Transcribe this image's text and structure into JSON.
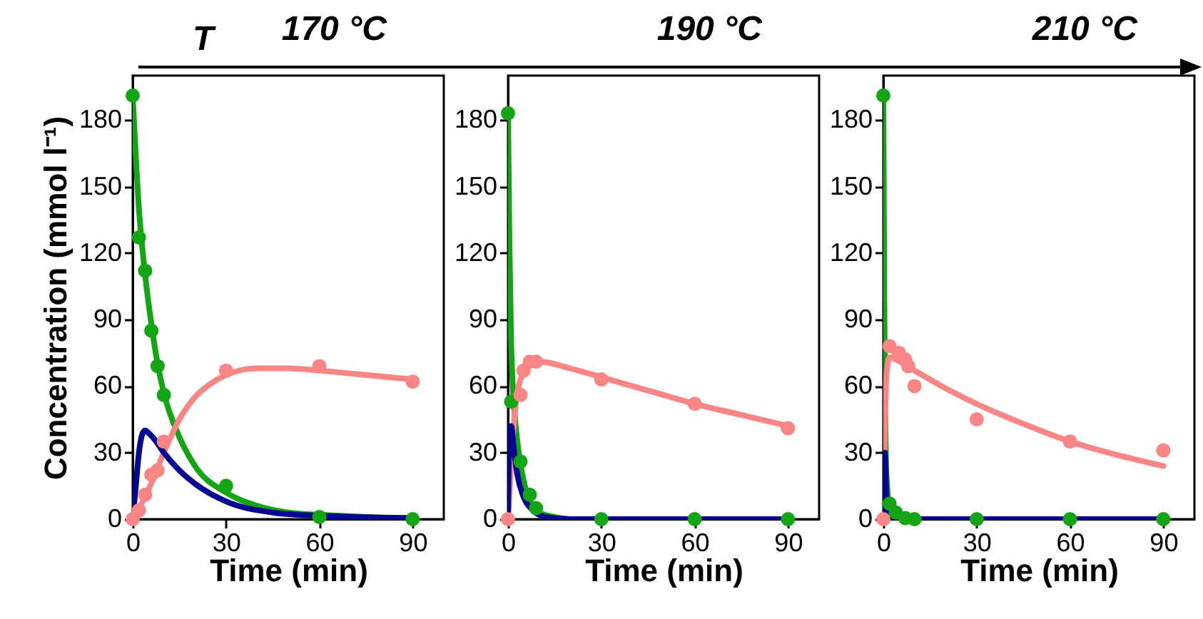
{
  "chart_data": [
    {
      "type": "line",
      "title": "170 °C",
      "annotations": [
        "T"
      ],
      "xlabel": "Time (min)",
      "ylabel": "Concentration (mmol l⁻¹)",
      "xlim": [
        0,
        100
      ],
      "ylim": [
        0,
        200
      ],
      "xticks": [
        0,
        30,
        60,
        90
      ],
      "yticks": [
        0,
        30,
        60,
        90,
        120,
        150,
        180
      ],
      "series": [
        {
          "color": "#14a514",
          "marker": "none",
          "x": [
            0,
            2,
            4,
            6,
            8,
            10,
            15,
            20,
            30,
            40,
            50,
            60,
            75,
            90
          ],
          "values": [
            191,
            140,
            110,
            88,
            70,
            57,
            37,
            24,
            12,
            6,
            3,
            2,
            1,
            0.5
          ]
        },
        {
          "color": "#fa8585",
          "marker": "none",
          "x": [
            0,
            5,
            10,
            15,
            20,
            25,
            30,
            40,
            50,
            60,
            75,
            90
          ],
          "values": [
            0,
            13,
            30,
            45,
            55,
            61,
            65,
            68,
            68,
            67,
            65,
            63
          ]
        },
        {
          "color": "#050594",
          "marker": "none",
          "x": [
            0,
            1,
            2,
            3,
            4,
            5,
            7,
            10,
            15,
            20,
            30,
            45,
            60,
            90
          ],
          "values": [
            0,
            15,
            30,
            38,
            40,
            39,
            36,
            30,
            22,
            16,
            8,
            3,
            1.5,
            0.5
          ]
        },
        {
          "type": "scatter",
          "marker": "circle",
          "color": "#14a514",
          "x": [
            0,
            2,
            4,
            6,
            8,
            10,
            30,
            60,
            90
          ],
          "values": [
            191,
            127,
            112,
            85,
            69,
            56,
            15,
            1,
            0
          ]
        },
        {
          "type": "scatter",
          "marker": "circle",
          "color": "#fa8585",
          "x": [
            0,
            2,
            4,
            6,
            8,
            10,
            30,
            60,
            90
          ],
          "values": [
            0,
            4,
            11,
            20,
            22,
            35,
            67,
            69,
            62
          ]
        }
      ]
    },
    {
      "type": "line",
      "title": "190 °C",
      "xlabel": "Time (min)",
      "xlim": [
        0,
        100
      ],
      "ylim": [
        0,
        200
      ],
      "xticks": [
        0,
        30,
        60,
        90
      ],
      "yticks": [
        0,
        30,
        60,
        90,
        120,
        150,
        180
      ],
      "series": [
        {
          "color": "#14a514",
          "marker": "none",
          "x": [
            0,
            0.5,
            1,
            2,
            3,
            4,
            6,
            8,
            10,
            15,
            20,
            90
          ],
          "values": [
            183,
            120,
            80,
            50,
            35,
            25,
            12,
            6,
            3,
            1,
            0,
            0
          ]
        },
        {
          "color": "#fa8585",
          "marker": "none",
          "x": [
            0,
            1,
            2,
            3,
            5,
            8,
            10,
            20,
            30,
            45,
            60,
            75,
            90
          ],
          "values": [
            0,
            25,
            45,
            57,
            66,
            70,
            71,
            68,
            64,
            58,
            52,
            47,
            42
          ]
        },
        {
          "color": "#050594",
          "marker": "none",
          "x": [
            0,
            0.5,
            1,
            2,
            3,
            5,
            8,
            12,
            20,
            90
          ],
          "values": [
            0,
            40,
            42,
            30,
            20,
            10,
            4,
            1,
            0,
            0
          ]
        },
        {
          "type": "scatter",
          "marker": "circle",
          "color": "#14a514",
          "x": [
            0,
            1,
            4,
            7,
            9,
            30,
            60,
            90
          ],
          "values": [
            183,
            53,
            26,
            11,
            5,
            0,
            0,
            0
          ]
        },
        {
          "type": "scatter",
          "marker": "circle",
          "color": "#fa8585",
          "x": [
            0,
            4,
            5,
            7,
            9,
            30,
            60,
            90
          ],
          "values": [
            0,
            56,
            67,
            71,
            71,
            63,
            52,
            41
          ]
        }
      ]
    },
    {
      "type": "line",
      "title": "210 °C",
      "xlabel": "Time (min)",
      "xlim": [
        0,
        100
      ],
      "ylim": [
        0,
        200
      ],
      "xticks": [
        0,
        30,
        60,
        90
      ],
      "yticks": [
        0,
        30,
        60,
        90,
        120,
        150,
        180
      ],
      "series": [
        {
          "color": "#14a514",
          "marker": "none",
          "x": [
            0,
            0.3,
            0.6,
            1,
            2,
            3,
            5,
            90
          ],
          "values": [
            191,
            100,
            50,
            20,
            5,
            1,
            0,
            0
          ]
        },
        {
          "color": "#fa8585",
          "marker": "none",
          "x": [
            0,
            0.5,
            1,
            2,
            4,
            10,
            20,
            30,
            45,
            60,
            75,
            90
          ],
          "values": [
            0,
            40,
            65,
            73,
            72,
            67,
            59,
            52,
            43,
            35,
            29,
            24
          ]
        },
        {
          "color": "#050594",
          "marker": "none",
          "x": [
            0,
            0.5,
            1,
            2,
            4,
            90
          ],
          "values": [
            0,
            30,
            10,
            2,
            0,
            0
          ]
        },
        {
          "type": "scatter",
          "marker": "circle",
          "color": "#14a514",
          "x": [
            0,
            2,
            4,
            7,
            10,
            30,
            60,
            90
          ],
          "values": [
            191,
            7,
            3,
            0.5,
            0,
            0,
            0,
            0
          ]
        },
        {
          "type": "scatter",
          "marker": "circle",
          "color": "#fa8585",
          "x": [
            0,
            2,
            5,
            7,
            8,
            10,
            30,
            60,
            90
          ],
          "values": [
            0,
            78,
            75,
            72,
            69,
            60,
            45,
            35,
            31
          ]
        }
      ]
    }
  ]
}
